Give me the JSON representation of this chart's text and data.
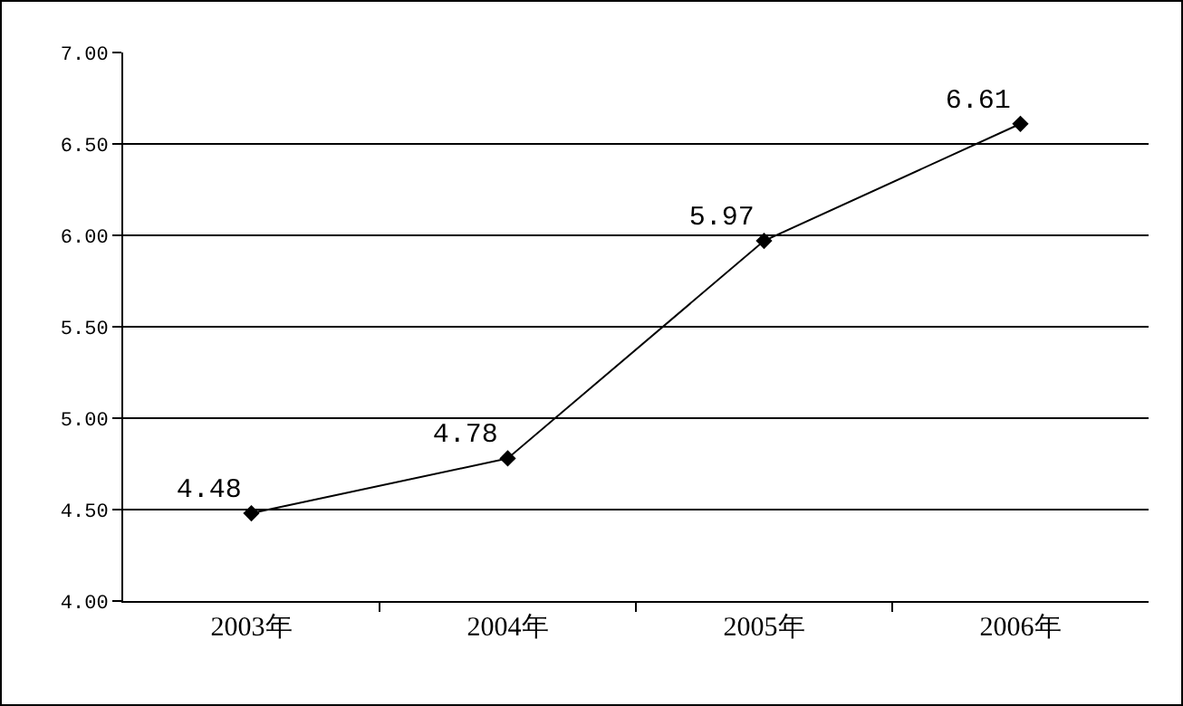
{
  "chart_data": {
    "type": "line",
    "categories": [
      "2003年",
      "2004年",
      "2005年",
      "2006年"
    ],
    "series": [
      {
        "color": "#000000",
        "values": [
          4.48,
          4.78,
          5.97,
          6.61
        ]
      }
    ],
    "ylim": [
      4,
      7
    ],
    "yticks": [
      {
        "value": 4,
        "label": "4.00"
      },
      {
        "value": 4.5,
        "label": "4.50"
      },
      {
        "value": 5,
        "label": "5.00"
      },
      {
        "value": 5.5,
        "label": "5.50"
      },
      {
        "value": 6,
        "label": "6.00"
      },
      {
        "value": 6.5,
        "label": "6.50"
      },
      {
        "value": 7,
        "label": "7.00"
      }
    ],
    "grid": "y",
    "marker": "diamond",
    "line_style": "solid",
    "data_labels": true
  }
}
